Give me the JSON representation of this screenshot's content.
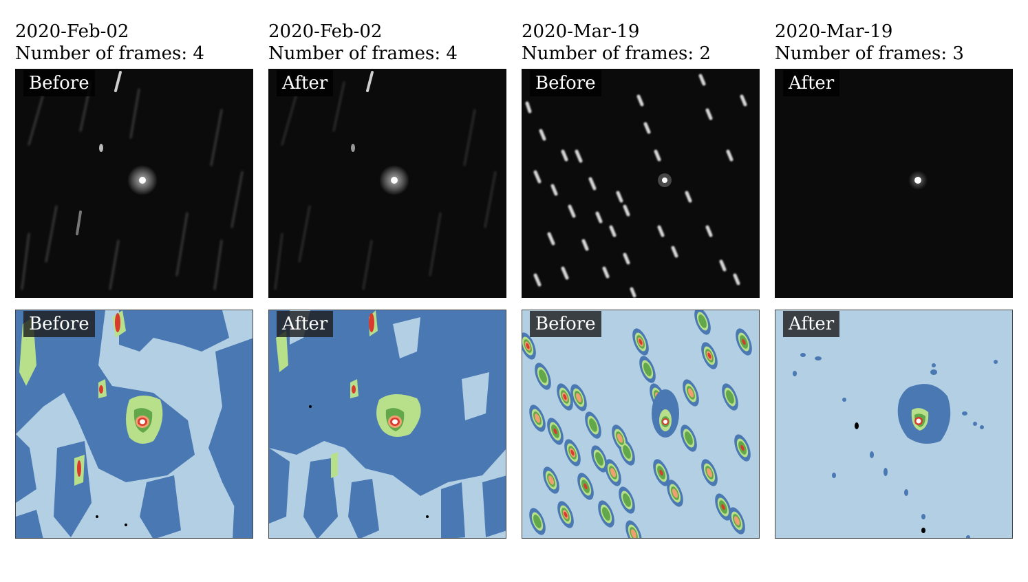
{
  "panels": [
    {
      "date": "2020-Feb-02",
      "frames_label": "Number of frames: 4",
      "image_tag": "Before",
      "contour_tag": "Before"
    },
    {
      "date": "2020-Feb-02",
      "frames_label": "Number of frames: 4",
      "image_tag": "After",
      "contour_tag": "After"
    },
    {
      "date": "2020-Mar-19",
      "frames_label": "Number of frames: 2",
      "image_tag": "Before",
      "contour_tag": "Before"
    },
    {
      "date": "2020-Mar-19",
      "frames_label": "Number of frames: 3",
      "image_tag": "After",
      "contour_tag": "After"
    }
  ],
  "contour_colors": [
    "#b3cfe4",
    "#4a78b3",
    "#b8e08a",
    "#62a84a",
    "#f0a070",
    "#d83a2e",
    "#ffffff"
  ]
}
